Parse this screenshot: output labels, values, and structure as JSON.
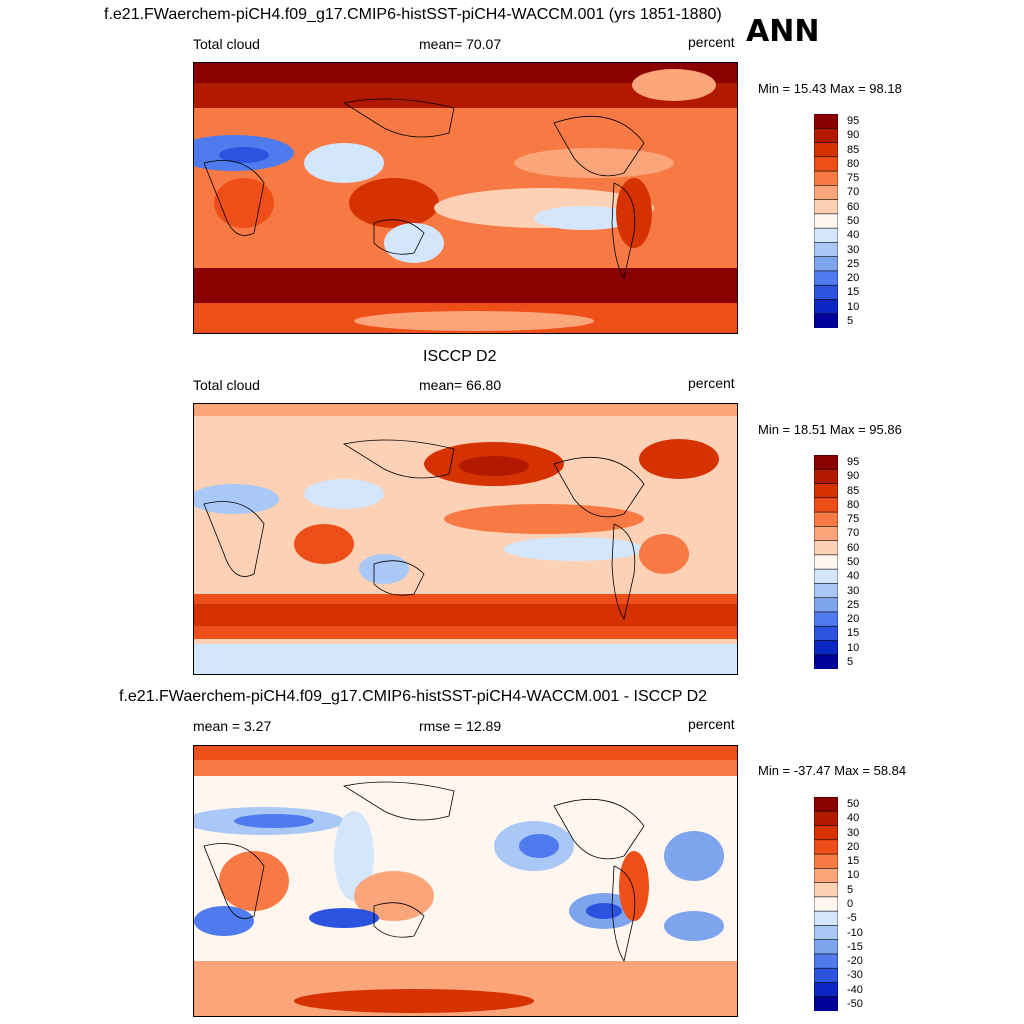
{
  "header": {
    "season": "ANN"
  },
  "panels": [
    {
      "title": "f.e21.FWaerchem-piCH4.f09_g17.CMIP6-histSST-piCH4-WACCM.001 (yrs 1851-1880)",
      "left_label": "Total cloud",
      "center_label": "mean=  70.07",
      "right_label": "percent",
      "minmax": "Min =  15.43 Max =  98.18"
    },
    {
      "title": "ISCCP D2",
      "left_label": "Total cloud",
      "center_label": "mean=  66.80",
      "right_label": "percent",
      "minmax": "Min =  18.51 Max =  95.86"
    },
    {
      "title": "f.e21.FWaerchem-piCH4.f09_g17.CMIP6-histSST-piCH4-WACCM.001 - ISCCP D2",
      "left_label": "mean =   3.27",
      "center_label": "rmse =  12.89",
      "right_label": "percent",
      "minmax": "Min = -37.47 Max =  58.84"
    }
  ],
  "chart_data": [
    {
      "type": "heatmap",
      "variable": "Total cloud",
      "units": "percent",
      "mean": 70.07,
      "min": 15.43,
      "max": 98.18,
      "colorbar_levels": [
        5,
        10,
        15,
        20,
        25,
        30,
        40,
        50,
        60,
        70,
        75,
        80,
        85,
        90,
        95
      ],
      "colorbar_labels": [
        "95",
        "90",
        "85",
        "80",
        "75",
        "70",
        "60",
        "50",
        "40",
        "30",
        "25",
        "20",
        "15",
        "10",
        "5"
      ],
      "colors": [
        "#8b0000",
        "#b21a00",
        "#d53200",
        "#ee4e18",
        "#f77a45",
        "#fba57a",
        "#fdd1b5",
        "#fff6ef",
        "#d4e6fb",
        "#aac8f6",
        "#7ea4ee",
        "#4f7bee",
        "#2b53e0",
        "#0d27c4",
        "#00009a"
      ]
    },
    {
      "type": "heatmap",
      "variable": "Total cloud",
      "units": "percent",
      "mean": 66.8,
      "min": 18.51,
      "max": 95.86,
      "colorbar_levels": [
        5,
        10,
        15,
        20,
        25,
        30,
        40,
        50,
        60,
        70,
        75,
        80,
        85,
        90,
        95
      ],
      "colorbar_labels": [
        "95",
        "90",
        "85",
        "80",
        "75",
        "70",
        "60",
        "50",
        "40",
        "30",
        "25",
        "20",
        "15",
        "10",
        "5"
      ],
      "colors": [
        "#8b0000",
        "#b21a00",
        "#d53200",
        "#ee4e18",
        "#f77a45",
        "#fba57a",
        "#fdd1b5",
        "#fff6ef",
        "#d4e6fb",
        "#aac8f6",
        "#7ea4ee",
        "#4f7bee",
        "#2b53e0",
        "#0d27c4",
        "#00009a"
      ]
    },
    {
      "type": "heatmap",
      "variable": "difference",
      "units": "percent",
      "mean": 3.27,
      "rmse": 12.89,
      "min": -37.47,
      "max": 58.84,
      "colorbar_levels": [
        -50,
        -40,
        -30,
        -20,
        -15,
        -10,
        -5,
        0,
        5,
        10,
        15,
        20,
        30,
        40,
        50
      ],
      "colorbar_labels": [
        "50",
        "40",
        "30",
        "20",
        "15",
        "10",
        "5",
        "0",
        "-5",
        "-10",
        "-15",
        "-20",
        "-30",
        "-40",
        "-50"
      ],
      "colors": [
        "#8b0000",
        "#b21a00",
        "#d53200",
        "#ee4e18",
        "#f77a45",
        "#fba57a",
        "#fdd1b5",
        "#fff6ef",
        "#d4e6fb",
        "#aac8f6",
        "#7ea4ee",
        "#4f7bee",
        "#2b53e0",
        "#0d27c4",
        "#00009a"
      ]
    }
  ]
}
